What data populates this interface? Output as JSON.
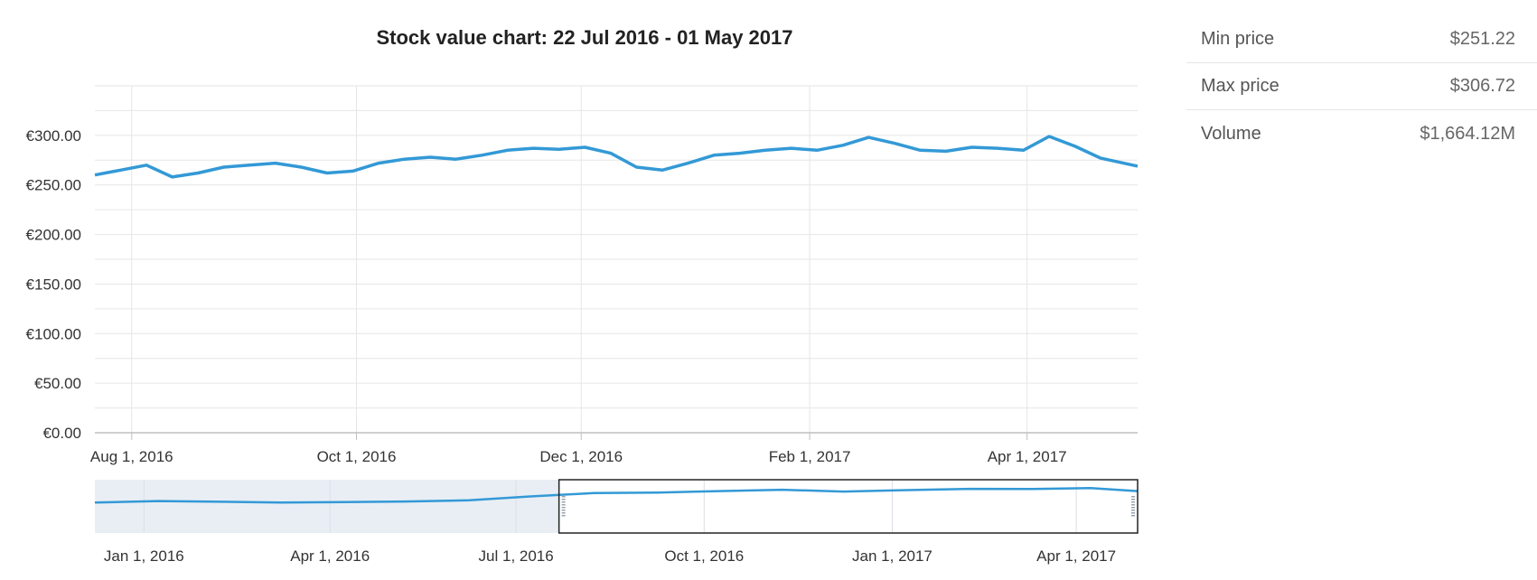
{
  "stats": {
    "items": [
      {
        "label": "Min price",
        "value": "$251.22"
      },
      {
        "label": "Max price",
        "value": "$306.72"
      },
      {
        "label": "Volume",
        "value": "$1,664.12M"
      }
    ]
  },
  "colors": {
    "line": "#3399d6",
    "grid": "#e6e6e6",
    "navigator_fill": "#e9eef5",
    "selection_border": "#222222"
  },
  "chart_data": [
    {
      "type": "line",
      "title": "Stock value chart: 22 Jul 2016 - 01 May 2017",
      "xlim": [
        "2016-07-22",
        "2017-05-01"
      ],
      "ylim": [
        0,
        350
      ],
      "y_ticks": [
        0,
        50,
        100,
        150,
        200,
        250,
        300
      ],
      "y_tick_labels": [
        "€0.00",
        "€50.00",
        "€100.00",
        "€150.00",
        "€200.00",
        "€250.00",
        "€300.00"
      ],
      "x_ticks": [
        "2016-08-01",
        "2016-10-01",
        "2016-12-01",
        "2017-02-01",
        "2017-04-01"
      ],
      "x_tick_labels": [
        "Aug 1, 2016",
        "Oct 1, 2016",
        "Dec 1, 2016",
        "Feb 1, 2017",
        "Apr 1, 2017"
      ],
      "grid": true,
      "x": [
        "2016-07-22",
        "2016-07-29",
        "2016-08-05",
        "2016-08-12",
        "2016-08-19",
        "2016-08-26",
        "2016-09-02",
        "2016-09-09",
        "2016-09-16",
        "2016-09-23",
        "2016-09-30",
        "2016-10-07",
        "2016-10-14",
        "2016-10-21",
        "2016-10-28",
        "2016-11-04",
        "2016-11-11",
        "2016-11-18",
        "2016-11-25",
        "2016-12-02",
        "2016-12-09",
        "2016-12-16",
        "2016-12-23",
        "2016-12-30",
        "2017-01-06",
        "2017-01-13",
        "2017-01-20",
        "2017-01-27",
        "2017-02-03",
        "2017-02-10",
        "2017-02-17",
        "2017-02-24",
        "2017-03-03",
        "2017-03-10",
        "2017-03-17",
        "2017-03-24",
        "2017-03-31",
        "2017-04-07",
        "2017-04-14",
        "2017-04-21",
        "2017-05-01"
      ],
      "values": [
        260,
        265,
        270,
        258,
        262,
        268,
        270,
        272,
        268,
        262,
        264,
        272,
        276,
        278,
        276,
        280,
        285,
        287,
        286,
        288,
        282,
        268,
        265,
        272,
        280,
        282,
        285,
        287,
        285,
        290,
        298,
        292,
        285,
        284,
        288,
        287,
        285,
        299,
        289,
        277,
        269
      ]
    },
    {
      "type": "area",
      "name": "navigator",
      "xlim": [
        "2015-12-08",
        "2017-05-01"
      ],
      "ylim": [
        0,
        350
      ],
      "x_ticks": [
        "2016-01-01",
        "2016-04-01",
        "2016-07-01",
        "2016-10-01",
        "2017-01-01",
        "2017-04-01"
      ],
      "x_tick_labels": [
        "Jan 1, 2016",
        "Apr 1, 2016",
        "Jul 1, 2016",
        "Oct 1, 2016",
        "Jan 1, 2017",
        "Apr 1, 2017"
      ],
      "selection": [
        "2016-07-22",
        "2017-05-01"
      ],
      "x": [
        "2015-12-08",
        "2016-01-08",
        "2016-02-08",
        "2016-03-08",
        "2016-04-08",
        "2016-05-08",
        "2016-06-08",
        "2016-07-08",
        "2016-08-08",
        "2016-09-08",
        "2016-10-08",
        "2016-11-08",
        "2016-12-08",
        "2017-01-08",
        "2017-02-08",
        "2017-03-08",
        "2017-04-08",
        "2017-05-01"
      ],
      "values": [
        200,
        210,
        205,
        200,
        203,
        207,
        215,
        240,
        262,
        265,
        275,
        284,
        272,
        282,
        290,
        289,
        295,
        275
      ]
    }
  ]
}
